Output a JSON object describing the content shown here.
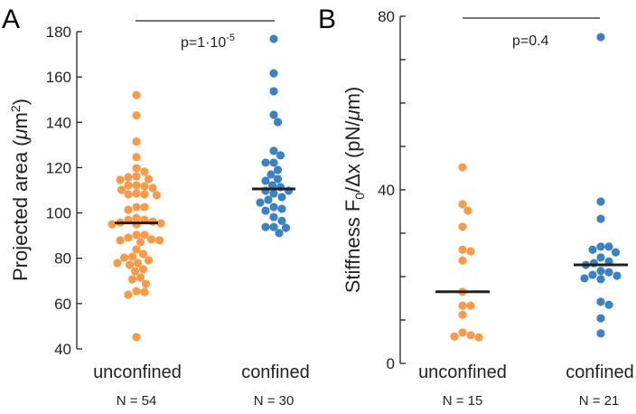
{
  "colors": {
    "unconfined": "#f79a4a",
    "confined": "#3b82c4",
    "axis": "#231f20",
    "median": "#231f20"
  },
  "chart_data": [
    {
      "panel": "A",
      "type": "scatter",
      "subtype": "beeswarm",
      "ylabel": "Projected area (μm2)",
      "ylabel_parts": {
        "before": "Projected area (",
        "mu": "μ",
        "unit": "m",
        "sup": "2",
        "after": ")"
      },
      "ylim": [
        40,
        180
      ],
      "yticks": [
        40,
        60,
        80,
        100,
        120,
        140,
        160,
        180
      ],
      "categories": [
        "unconfined",
        "confined"
      ],
      "n_labels": [
        "N = 54",
        "N = 30"
      ],
      "significance": {
        "text": "p=1·10",
        "sup": "-5"
      },
      "series": [
        {
          "name": "unconfined",
          "median": 95.6,
          "values": [
            152,
            143,
            131.5,
            124.6,
            119.8,
            118.2,
            116.2,
            115.8,
            115,
            114.6,
            112.2,
            112.2,
            111.8,
            111,
            110.2,
            108.6,
            108.2,
            108.2,
            107.8,
            102.6,
            102.6,
            101.4,
            97.8,
            97,
            97,
            96.2,
            95.8,
            95,
            95,
            95.4,
            90.3,
            90.3,
            89.1,
            88.3,
            87.9,
            87.9,
            87.1,
            83.9,
            81.9,
            80.7,
            80.3,
            79.1,
            77.9,
            77.9,
            77.1,
            75.1,
            74.3,
            71.5,
            70.7,
            68.7,
            65.5,
            65.1,
            63.9,
            45.2
          ]
        },
        {
          "name": "confined",
          "median": 110.6,
          "values": [
            176.8,
            161.6,
            153.7,
            143.3,
            140.1,
            127.4,
            125.4,
            122.2,
            122.2,
            119,
            117,
            115,
            114.2,
            112.2,
            111.4,
            109.8,
            109.8,
            108.6,
            107,
            105.8,
            104.6,
            102.6,
            101.8,
            101,
            98.2,
            93.8,
            93.4,
            93.8,
            91.1,
            96.5
          ]
        }
      ]
    },
    {
      "panel": "B",
      "type": "scatter",
      "subtype": "beeswarm",
      "ylabel": "Stiffness F0/Δx (pN/μm)",
      "ylabel_parts": {
        "before": "Stiffness F",
        "sub": "0",
        "after": "/Δx (pN/",
        "mu": "μ",
        "unit": "m)"
      },
      "ylim": [
        0,
        80
      ],
      "yticks": [
        0,
        40,
        80
      ],
      "minor_ticks": [
        10,
        20,
        30,
        50,
        60,
        70
      ],
      "categories": [
        "unconfined",
        "confined"
      ],
      "n_labels": [
        "N = 15",
        "N = 21"
      ],
      "significance": {
        "text": "p=0.4",
        "sup": ""
      },
      "series": [
        {
          "name": "unconfined",
          "median": 16.5,
          "values": [
            45.2,
            36.7,
            35.2,
            31.5,
            26.2,
            25.8,
            23.7,
            16.5,
            13.3,
            13.3,
            11.2,
            7.1,
            6.5,
            6.0,
            6.2
          ]
        },
        {
          "name": "confined",
          "median": 22.7,
          "values": [
            75.2,
            37.3,
            33.3,
            26.9,
            26.2,
            26.9,
            25.6,
            24.4,
            22.7,
            23.5,
            23.1,
            21.3,
            21.0,
            20.4,
            19.6,
            20.2,
            19.4,
            14.2,
            13.5,
            10.4,
            6.9
          ]
        }
      ]
    }
  ]
}
